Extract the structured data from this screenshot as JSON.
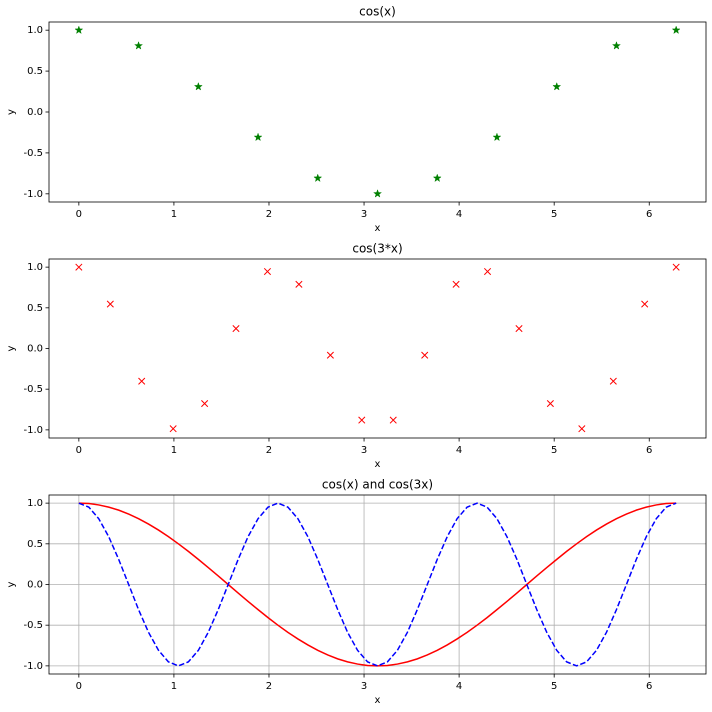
{
  "chart_data": [
    {
      "type": "scatter",
      "title": "cos(x)",
      "xlabel": "x",
      "ylabel": "y",
      "marker": "star",
      "color": "#008000",
      "x": [
        0,
        0.628,
        1.257,
        1.885,
        2.513,
        3.142,
        3.77,
        4.398,
        5.027,
        5.655,
        6.283
      ],
      "values": [
        1,
        0.809,
        0.309,
        -0.309,
        -0.809,
        -1,
        -0.809,
        -0.309,
        0.309,
        0.809,
        1
      ],
      "xlim": [
        -0.314,
        6.597
      ],
      "ylim": [
        -1.1,
        1.1
      ],
      "xticks": [
        0,
        1,
        2,
        3,
        4,
        5,
        6
      ],
      "yticks": [
        {
          "value": -1,
          "label": "-1.0"
        },
        -0.5,
        {
          "value": 0,
          "label": "0.0"
        },
        0.5,
        {
          "value": 1,
          "label": "1.0"
        }
      ],
      "grid": false
    },
    {
      "type": "scatter",
      "title": "cos(3*x)",
      "xlabel": "x",
      "ylabel": "y",
      "marker": "x",
      "color": "#ff0000",
      "x": [
        0,
        0.331,
        0.661,
        0.992,
        1.323,
        1.653,
        1.984,
        2.315,
        2.646,
        2.976,
        3.307,
        3.638,
        3.968,
        4.299,
        4.63,
        4.96,
        5.291,
        5.622,
        5.952,
        6.283
      ],
      "values": [
        1,
        0.546,
        -0.402,
        -0.986,
        -0.677,
        0.245,
        0.946,
        0.789,
        -0.082,
        -0.88,
        -0.88,
        -0.082,
        0.789,
        0.946,
        0.245,
        -0.677,
        -0.986,
        -0.402,
        0.546,
        1
      ],
      "xlim": [
        -0.314,
        6.597
      ],
      "ylim": [
        -1.1,
        1.1
      ],
      "xticks": [
        0,
        1,
        2,
        3,
        4,
        5,
        6
      ],
      "yticks": [
        {
          "value": -1,
          "label": "-1.0"
        },
        -0.5,
        {
          "value": 0,
          "label": "0.0"
        },
        0.5,
        {
          "value": 1,
          "label": "1.0"
        }
      ],
      "grid": false
    },
    {
      "type": "line",
      "title": "cos(x) and cos(3x)",
      "xlabel": "x",
      "ylabel": "y",
      "x": [
        0,
        0.105,
        0.209,
        0.314,
        0.419,
        0.524,
        0.628,
        0.733,
        0.838,
        0.942,
        1.047,
        1.152,
        1.257,
        1.361,
        1.466,
        1.571,
        1.676,
        1.78,
        1.885,
        1.99,
        2.094,
        2.199,
        2.304,
        2.409,
        2.513,
        2.618,
        2.723,
        2.827,
        2.932,
        3.037,
        3.142,
        3.246,
        3.351,
        3.456,
        3.56,
        3.665,
        3.77,
        3.875,
        3.979,
        4.084,
        4.189,
        4.294,
        4.398,
        4.503,
        4.608,
        4.712,
        4.817,
        4.922,
        5.027,
        5.131,
        5.236,
        5.341,
        5.445,
        5.55,
        5.655,
        5.76,
        5.864,
        5.969,
        6.074,
        6.178,
        6.283
      ],
      "series": [
        {
          "color": "#ff0000",
          "style": "solid",
          "values": [
            1,
            0.995,
            0.978,
            0.951,
            0.914,
            0.866,
            0.809,
            0.743,
            0.669,
            0.588,
            0.5,
            0.407,
            0.309,
            0.208,
            0.105,
            0,
            -0.105,
            -0.208,
            -0.309,
            -0.407,
            -0.5,
            -0.588,
            -0.669,
            -0.743,
            -0.809,
            -0.866,
            -0.914,
            -0.951,
            -0.978,
            -0.995,
            -1,
            -0.995,
            -0.978,
            -0.951,
            -0.914,
            -0.866,
            -0.809,
            -0.743,
            -0.669,
            -0.588,
            -0.5,
            -0.407,
            -0.309,
            -0.208,
            -0.105,
            0,
            0.105,
            0.208,
            0.309,
            0.407,
            0.5,
            0.588,
            0.669,
            0.743,
            0.809,
            0.866,
            0.914,
            0.951,
            0.978,
            0.995,
            1
          ]
        },
        {
          "color": "#0000ff",
          "style": "dashed",
          "values": [
            1,
            0.951,
            0.809,
            0.588,
            0.309,
            0,
            -0.309,
            -0.588,
            -0.809,
            -0.951,
            -1,
            -0.951,
            -0.809,
            -0.588,
            -0.309,
            0,
            0.309,
            0.588,
            0.809,
            0.951,
            1,
            0.951,
            0.809,
            0.588,
            0.309,
            0,
            -0.309,
            -0.588,
            -0.809,
            -0.951,
            -1,
            -0.951,
            -0.809,
            -0.588,
            -0.309,
            0,
            0.309,
            0.588,
            0.809,
            0.951,
            1,
            0.951,
            0.809,
            0.588,
            0.309,
            0,
            -0.309,
            -0.588,
            -0.809,
            -0.951,
            -1,
            -0.951,
            -0.809,
            -0.588,
            -0.309,
            0,
            0.309,
            0.588,
            0.809,
            0.951,
            1
          ]
        }
      ],
      "xlim": [
        -0.314,
        6.597
      ],
      "ylim": [
        -1.1,
        1.1
      ],
      "xticks": [
        0,
        1,
        2,
        3,
        4,
        5,
        6
      ],
      "yticks": [
        {
          "value": -1,
          "label": "-1.0"
        },
        -0.5,
        {
          "value": 0,
          "label": "0.0"
        },
        0.5,
        {
          "value": 1,
          "label": "1.0"
        }
      ],
      "grid": true
    }
  ]
}
